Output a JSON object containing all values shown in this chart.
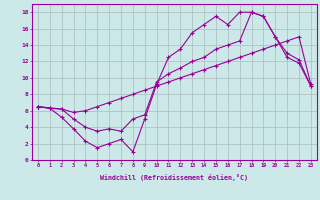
{
  "xlabel": "Windchill (Refroidissement éolien,°C)",
  "xlim": [
    -0.5,
    23.5
  ],
  "ylim": [
    0,
    19
  ],
  "xticks": [
    0,
    1,
    2,
    3,
    4,
    5,
    6,
    7,
    8,
    9,
    10,
    11,
    12,
    13,
    14,
    15,
    16,
    17,
    18,
    19,
    20,
    21,
    22,
    23
  ],
  "yticks": [
    0,
    2,
    4,
    6,
    8,
    10,
    12,
    14,
    16,
    18
  ],
  "bg_color": "#cce8e8",
  "line_color": "#990099",
  "grid_color": "#aabbbb",
  "line1_x": [
    0,
    1,
    2,
    3,
    4,
    5,
    6,
    7,
    8,
    9,
    10,
    11,
    12,
    13,
    14,
    15,
    16,
    17,
    18,
    19,
    20,
    21,
    22,
    23
  ],
  "line1_y": [
    6.5,
    6.3,
    5.2,
    3.8,
    2.3,
    1.5,
    2.0,
    2.5,
    1.0,
    5.0,
    9.2,
    12.5,
    13.5,
    15.5,
    16.5,
    17.5,
    16.5,
    18.0,
    18.0,
    17.5,
    15.0,
    12.5,
    11.8,
    9.0
  ],
  "line2_x": [
    0,
    1,
    2,
    3,
    4,
    5,
    6,
    7,
    8,
    9,
    10,
    11,
    12,
    13,
    14,
    15,
    16,
    17,
    18,
    19,
    20,
    21,
    22,
    23
  ],
  "line2_y": [
    6.5,
    6.3,
    6.2,
    5.8,
    6.0,
    6.5,
    7.0,
    7.5,
    8.0,
    8.5,
    9.0,
    9.5,
    10.0,
    10.5,
    11.0,
    11.5,
    12.0,
    12.5,
    13.0,
    13.5,
    14.0,
    14.5,
    15.0,
    9.2
  ],
  "line3_x": [
    0,
    2,
    3,
    4,
    5,
    6,
    7,
    8,
    9,
    10,
    11,
    12,
    13,
    14,
    15,
    16,
    17,
    18,
    19,
    20,
    21,
    22,
    23
  ],
  "line3_y": [
    6.5,
    6.2,
    5.0,
    4.0,
    3.5,
    3.8,
    3.5,
    5.0,
    5.5,
    9.5,
    10.5,
    11.2,
    12.0,
    12.5,
    13.5,
    14.0,
    14.5,
    18.0,
    17.5,
    15.0,
    13.0,
    12.2,
    9.0
  ]
}
